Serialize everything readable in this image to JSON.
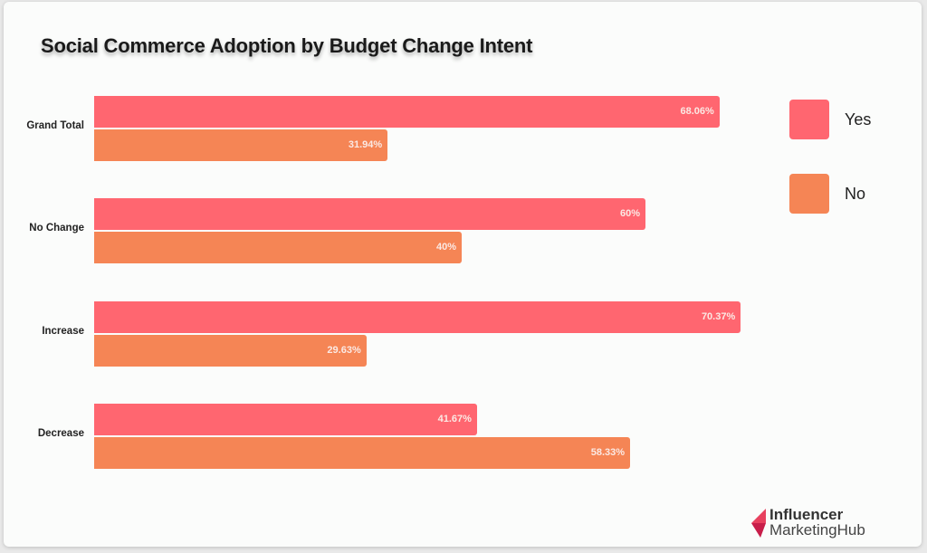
{
  "chart_data": {
    "type": "bar",
    "orientation": "horizontal",
    "title": "Social Commerce Adoption by Budget Change Intent",
    "categories": [
      "Grand Total",
      "No Change",
      "Increase",
      "Decrease"
    ],
    "series": [
      {
        "name": "Yes",
        "color": "#ff6670",
        "values": [
          68.06,
          60,
          70.37,
          41.67
        ],
        "labels": [
          "68.06%",
          "60%",
          "70.37%",
          "41.67%"
        ]
      },
      {
        "name": "No",
        "color": "#f58555",
        "values": [
          31.94,
          40,
          29.63,
          58.33
        ],
        "labels": [
          "31.94%",
          "40%",
          "29.63%",
          "58.33%"
        ]
      }
    ],
    "xlabel": "",
    "ylabel": "",
    "xlim": [
      0,
      100
    ],
    "grid": false,
    "legend": "top-right"
  },
  "branding": {
    "line1": "Influencer",
    "line2": "MarketingHub",
    "color": "#e8415f"
  }
}
